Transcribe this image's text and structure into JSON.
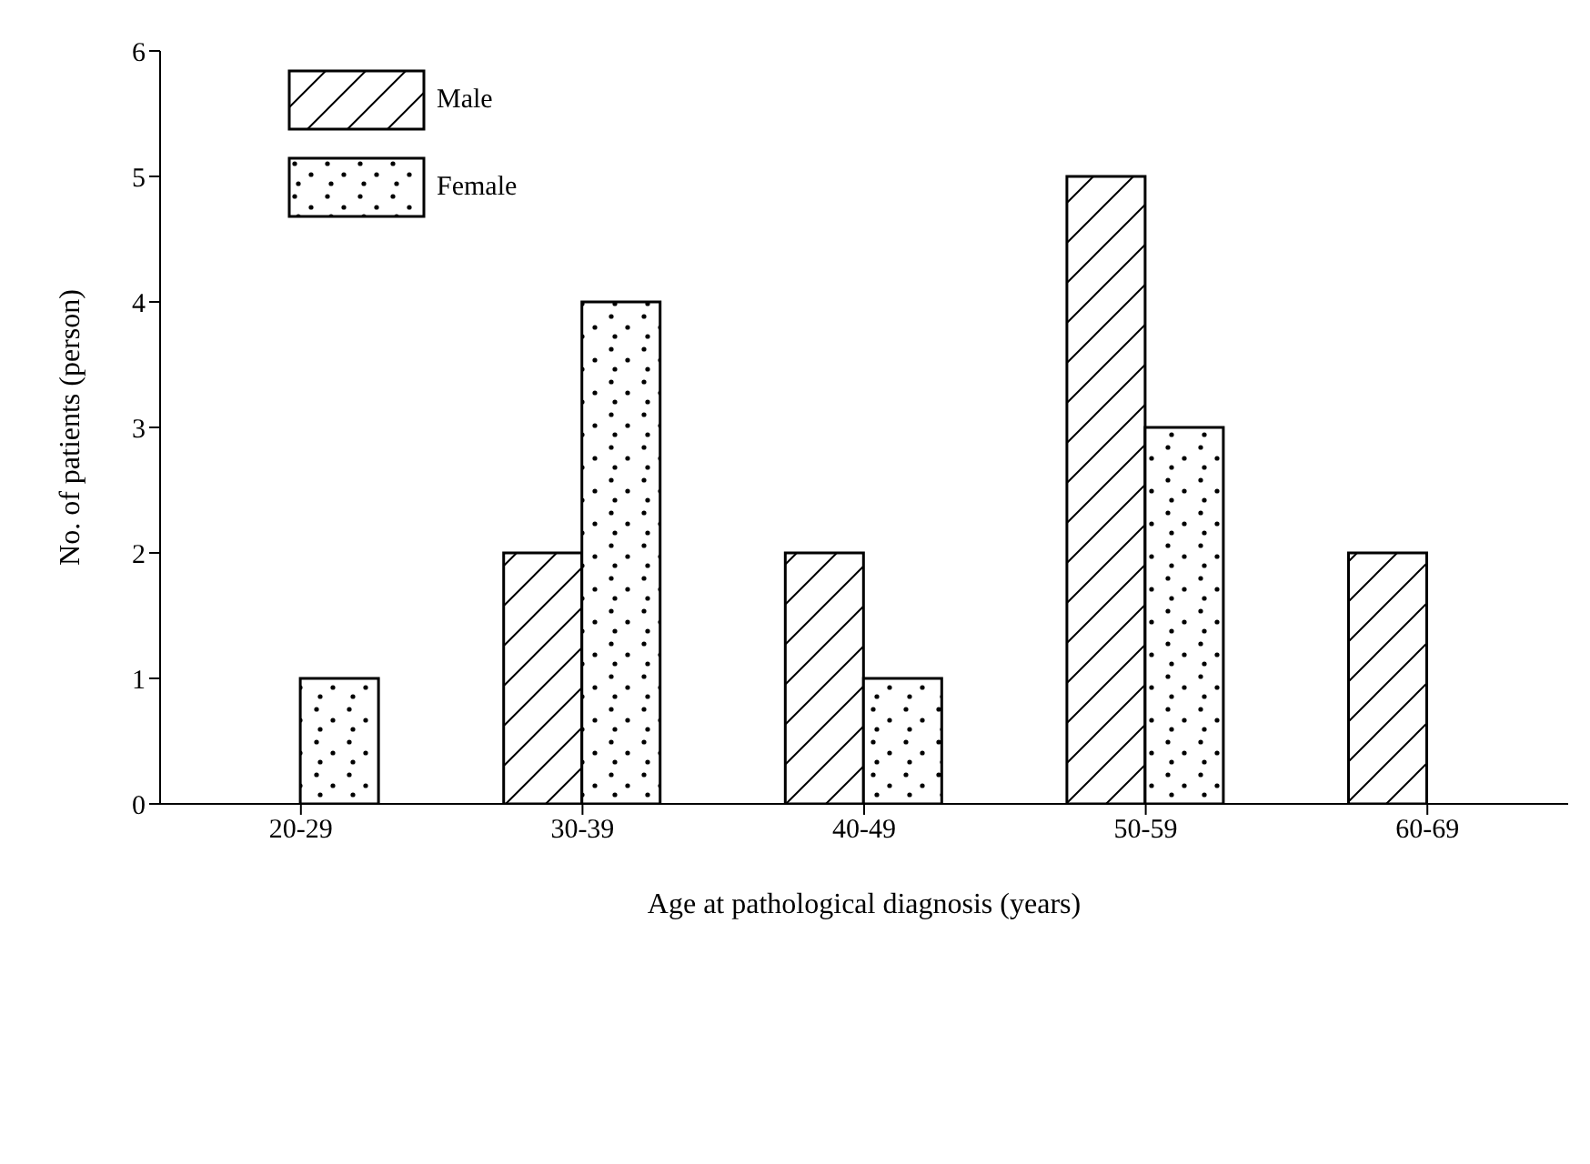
{
  "chart_data": {
    "type": "bar",
    "xlabel": "Age at pathological diagnosis (years)",
    "ylabel": "No. of patients (person)",
    "categories": [
      "20-29",
      "30-39",
      "40-49",
      "50-59",
      "60-69"
    ],
    "series": [
      {
        "name": "Male",
        "color": "#000000",
        "values": [
          0,
          2,
          2,
          5,
          2
        ]
      },
      {
        "name": "Female",
        "color": "#000000",
        "values": [
          1,
          4,
          1,
          3,
          0
        ]
      }
    ],
    "ylim": [
      0,
      6
    ],
    "yticks": [
      0,
      1,
      2,
      3,
      4,
      5,
      6
    ],
    "grid": false,
    "legend": "top left"
  }
}
